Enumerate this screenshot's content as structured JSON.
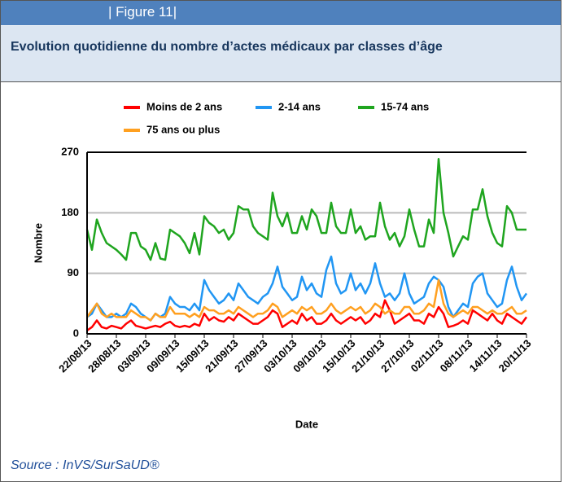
{
  "figure_label": "| Figure 11|",
  "source": "Source : InVS/SurSaUD®",
  "chart_data": {
    "type": "line",
    "title": "Evolution quotidienne du nombre d’actes médicaux par classes d’âge",
    "y_label": "Nombre",
    "x_label": "Date",
    "categories": [
      "22/08/13",
      null,
      null,
      null,
      null,
      null,
      "28/08/13",
      null,
      null,
      null,
      null,
      null,
      "03/09/13",
      null,
      null,
      null,
      null,
      null,
      "09/09/13",
      null,
      null,
      null,
      null,
      null,
      "15/09/13",
      null,
      null,
      null,
      null,
      null,
      "21/09/13",
      null,
      null,
      null,
      null,
      null,
      "27/09/13",
      null,
      null,
      null,
      null,
      null,
      "03/10/13",
      null,
      null,
      null,
      null,
      null,
      "09/10/13",
      null,
      null,
      null,
      null,
      null,
      "15/10/13",
      null,
      null,
      null,
      null,
      null,
      "21/10/13",
      null,
      null,
      null,
      null,
      null,
      "27/10/13",
      null,
      null,
      null,
      null,
      null,
      "02/11/13",
      null,
      null,
      null,
      null,
      null,
      "08/11/13",
      null,
      null,
      null,
      null,
      null,
      "14/11/13",
      null,
      null,
      null,
      null,
      null,
      "20/11/13"
    ],
    "ylim": [
      0,
      270
    ],
    "yticks": [
      0,
      90,
      180,
      270
    ],
    "grid": true,
    "series": [
      {
        "name": "Moins de 2 ans",
        "color": "#ff0000",
        "values": [
          5,
          10,
          20,
          10,
          8,
          12,
          10,
          8,
          15,
          20,
          12,
          10,
          8,
          10,
          12,
          10,
          15,
          18,
          12,
          10,
          12,
          10,
          15,
          12,
          30,
          20,
          25,
          20,
          18,
          25,
          20,
          30,
          25,
          20,
          15,
          15,
          20,
          25,
          35,
          30,
          10,
          15,
          20,
          15,
          30,
          20,
          25,
          15,
          15,
          20,
          30,
          20,
          15,
          20,
          25,
          20,
          25,
          15,
          20,
          30,
          25,
          50,
          35,
          15,
          20,
          25,
          30,
          20,
          20,
          15,
          30,
          25,
          40,
          30,
          10,
          12,
          15,
          20,
          15,
          35,
          30,
          25,
          20,
          30,
          20,
          15,
          30,
          25,
          20,
          15,
          25
        ]
      },
      {
        "name": "2-14 ans",
        "color": "#2196f3",
        "values": [
          25,
          30,
          45,
          35,
          25,
          25,
          30,
          25,
          30,
          45,
          40,
          30,
          25,
          20,
          30,
          25,
          30,
          55,
          45,
          40,
          40,
          35,
          45,
          35,
          80,
          65,
          55,
          45,
          50,
          60,
          50,
          75,
          65,
          55,
          50,
          45,
          55,
          60,
          75,
          100,
          70,
          60,
          50,
          55,
          85,
          65,
          75,
          60,
          55,
          95,
          115,
          75,
          60,
          65,
          90,
          65,
          75,
          60,
          75,
          105,
          75,
          55,
          60,
          50,
          60,
          90,
          60,
          45,
          50,
          55,
          75,
          85,
          80,
          70,
          40,
          25,
          35,
          45,
          40,
          75,
          85,
          90,
          60,
          50,
          40,
          45,
          80,
          100,
          70,
          50,
          60
        ]
      },
      {
        "name": "15-74 ans",
        "color": "#1fa51f",
        "values": [
          155,
          125,
          170,
          150,
          135,
          130,
          125,
          118,
          110,
          150,
          150,
          130,
          125,
          110,
          135,
          112,
          110,
          155,
          150,
          145,
          135,
          120,
          150,
          118,
          175,
          165,
          160,
          150,
          155,
          140,
          150,
          190,
          185,
          185,
          160,
          150,
          145,
          140,
          210,
          175,
          160,
          180,
          150,
          150,
          175,
          155,
          185,
          175,
          150,
          150,
          195,
          160,
          150,
          150,
          185,
          150,
          160,
          140,
          145,
          145,
          195,
          160,
          140,
          150,
          130,
          145,
          185,
          155,
          130,
          130,
          170,
          150,
          260,
          180,
          150,
          115,
          130,
          145,
          140,
          185,
          185,
          215,
          175,
          150,
          135,
          130,
          190,
          180,
          155,
          155,
          155
        ]
      },
      {
        "name": "75 ans ou plus",
        "color": "#ffa020",
        "values": [
          25,
          35,
          45,
          30,
          25,
          30,
          25,
          25,
          25,
          35,
          30,
          25,
          25,
          20,
          30,
          25,
          25,
          40,
          30,
          30,
          30,
          25,
          30,
          25,
          40,
          35,
          35,
          30,
          30,
          35,
          30,
          40,
          35,
          30,
          25,
          30,
          30,
          35,
          45,
          40,
          25,
          30,
          35,
          30,
          40,
          35,
          40,
          30,
          30,
          35,
          45,
          35,
          30,
          35,
          40,
          35,
          40,
          30,
          35,
          45,
          40,
          30,
          35,
          30,
          30,
          40,
          40,
          30,
          30,
          35,
          45,
          40,
          80,
          45,
          30,
          25,
          30,
          35,
          30,
          40,
          40,
          35,
          30,
          35,
          30,
          30,
          35,
          40,
          30,
          30,
          35
        ]
      }
    ]
  }
}
